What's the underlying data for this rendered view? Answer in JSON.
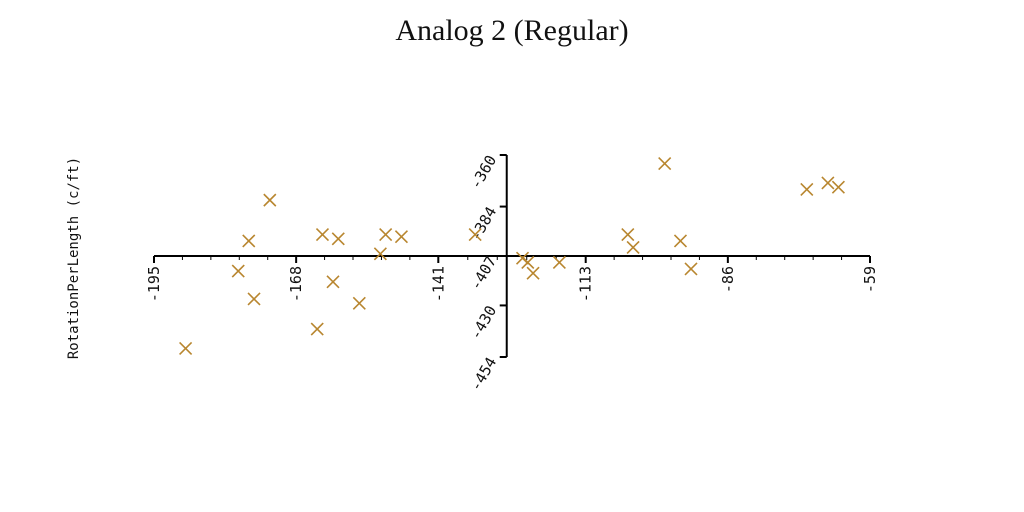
{
  "chart_data": {
    "type": "scatter",
    "title": "Analog 2 (Regular)",
    "xlabel": "",
    "ylabel": "RotationPerLength (c/ft)",
    "xlim": [
      -195,
      -59
    ],
    "ylim": [
      -454,
      -360
    ],
    "x_ticks": [
      "-195",
      "-168",
      "-141",
      "-113",
      "-86",
      "-59"
    ],
    "y_ticks": [
      "-360",
      "-384",
      "-407",
      "-430",
      "-454"
    ],
    "axes_cross": {
      "x": -128,
      "y": -407
    },
    "marker": "x",
    "marker_color": "#b8862f",
    "series": [
      {
        "points": [
          [
            -189,
            -450
          ],
          [
            -179,
            -414
          ],
          [
            -177,
            -400
          ],
          [
            -176,
            -427
          ],
          [
            -173,
            -381
          ],
          [
            -164,
            -441
          ],
          [
            -163,
            -397
          ],
          [
            -161,
            -419
          ],
          [
            -160,
            -399
          ],
          [
            -156,
            -429
          ],
          [
            -152,
            -406
          ],
          [
            -151,
            -397
          ],
          [
            -148,
            -398
          ],
          [
            -134,
            -397
          ],
          [
            -125,
            -408
          ],
          [
            -124,
            -410
          ],
          [
            -123,
            -415
          ],
          [
            -118,
            -410
          ],
          [
            -105,
            -397
          ],
          [
            -104,
            -403
          ],
          [
            -98,
            -364
          ],
          [
            -95,
            -400
          ],
          [
            -93,
            -413
          ],
          [
            -71,
            -376
          ],
          [
            -67,
            -373
          ],
          [
            -65,
            -375
          ]
        ]
      }
    ]
  }
}
